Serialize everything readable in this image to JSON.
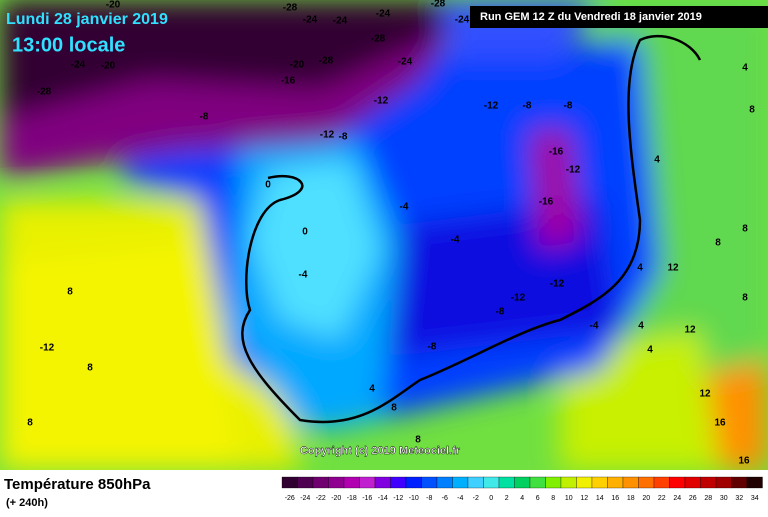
{
  "header": {
    "date": "Lundi 28 janvier 2019",
    "time": "13:00 locale",
    "run": "Run GEM 12 Z du Vendredi 18 janvier 2019"
  },
  "footer": {
    "title": "Température 850hPa",
    "lead": "(+ 240h)",
    "copyright": "Copyright (c) 2019 Meteociel.fr"
  },
  "legend": {
    "ticks": [
      -26,
      -24,
      -22,
      -20,
      -18,
      -16,
      -14,
      -12,
      -10,
      -8,
      -6,
      -4,
      -2,
      0,
      2,
      4,
      6,
      8,
      10,
      12,
      14,
      16,
      18,
      20,
      22,
      24,
      26,
      28,
      30,
      32,
      34
    ],
    "colors": [
      "#300030",
      "#500050",
      "#700070",
      "#900090",
      "#b000b0",
      "#c020d0",
      "#8000e0",
      "#4000ff",
      "#0020ff",
      "#0050ff",
      "#0080ff",
      "#00b0ff",
      "#40d0ff",
      "#40e8e8",
      "#00e0a0",
      "#00d060",
      "#40e040",
      "#80f000",
      "#c0f000",
      "#f0f000",
      "#ffd000",
      "#ffb000",
      "#ff9000",
      "#ff7000",
      "#ff4000",
      "#ff0000",
      "#e00000",
      "#c00000",
      "#a00000",
      "#600000",
      "#200000"
    ]
  },
  "map": {
    "labels": [
      -28,
      -24,
      -24,
      -20,
      -24,
      -28,
      -24,
      -28,
      -24,
      -20,
      -20,
      -28,
      -24,
      -16,
      -28,
      -12,
      -8,
      -12,
      -8,
      -12,
      -8,
      -8,
      -16,
      -12,
      -16,
      0,
      0,
      -4,
      -4,
      -4,
      -12,
      -12,
      -8,
      -8,
      -4,
      4,
      4,
      4,
      8,
      8,
      8,
      -12,
      8,
      8,
      4,
      8,
      4,
      8,
      12,
      12,
      16,
      16,
      8,
      12,
      8,
      4
    ]
  }
}
